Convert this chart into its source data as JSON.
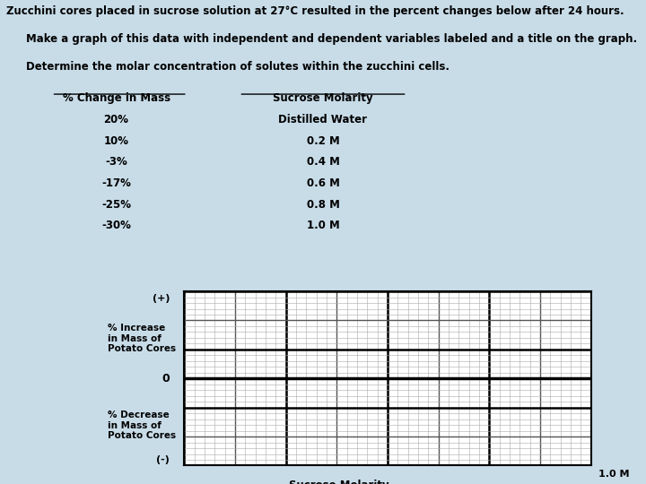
{
  "title_line1": "Zucchini cores placed in sucrose solution at 27°C resulted in the percent changes below after 24 hours.",
  "title_line2": "Make a graph of this data with independent and dependent variables labeled and a title on the graph.",
  "title_line3": "Determine the molar concentration of solutes within the zucchini cells.",
  "col1_header": "% Change in Mass",
  "col2_header": "Sucrose Molarity",
  "data_col1": [
    "20%",
    "10%",
    "-3%",
    "-17%",
    "-25%",
    "-30%"
  ],
  "data_col2": [
    "Distilled Water",
    "0.2 M",
    "0.4 M",
    "0.6 M",
    "0.8 M",
    "1.0 M"
  ],
  "bg_color": "#c8dce8",
  "graph_bg": "#ffffff",
  "grid_minor_color": "#aaaaaa",
  "grid_major_color": "#555555",
  "grid_bold_color": "#000000",
  "ylabel_upper": "% Increase\nin Mass of\nPotato Cores",
  "ylabel_lower": "% Decrease\nin Mass of\nPotato Cores",
  "xlabel": "Sucrose Molarity",
  "xlim_label": "1.0 M",
  "yplus_label": "(+)",
  "yminus_label": "(-)",
  "zero_label": "0",
  "n_cols": 40,
  "n_rows": 30,
  "zero_row": 15
}
